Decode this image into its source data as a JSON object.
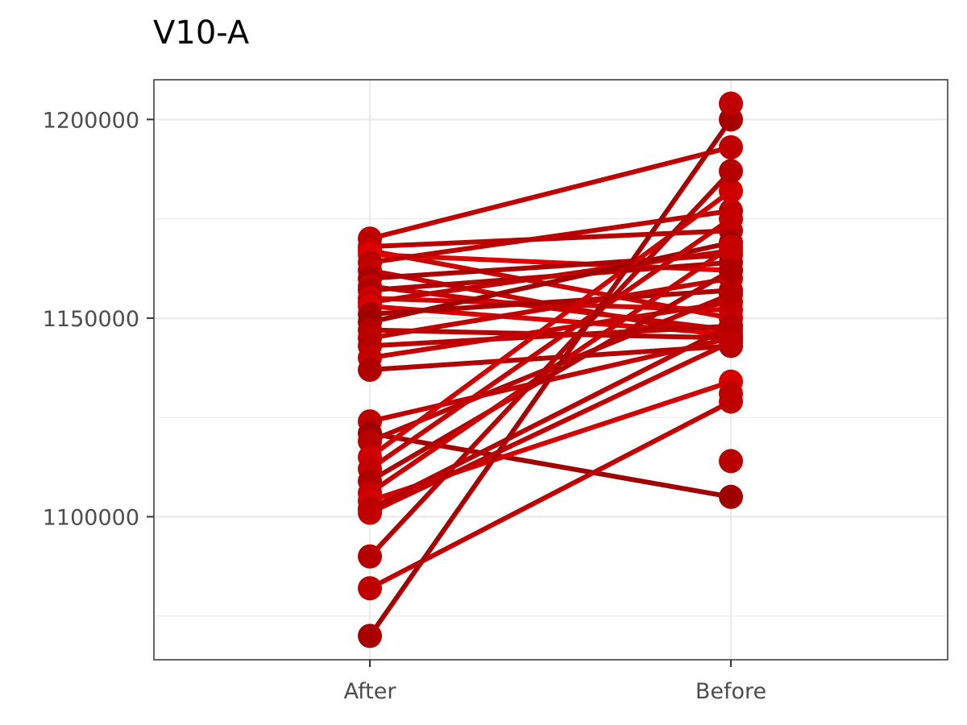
{
  "chart_data": {
    "type": "line",
    "title": "V10-A",
    "xlabel": "",
    "ylabel": "",
    "categories": [
      "After",
      "Before"
    ],
    "y_ticks": [
      "1100000",
      "1150000",
      "1200000"
    ],
    "ylim": [
      1064000,
      1210000
    ],
    "grid": true,
    "legend": "none",
    "pairs": [
      {
        "after": 1170000,
        "before": 1193000,
        "color": "#c00000"
      },
      {
        "after": 1168000,
        "before": 1172000,
        "color": "#b80000"
      },
      {
        "after": 1167000,
        "before": 1150000,
        "color": "#cc0000"
      },
      {
        "after": 1166000,
        "before": 1162000,
        "color": "#e00000"
      },
      {
        "after": 1164000,
        "before": 1177000,
        "color": "#bb0000"
      },
      {
        "after": 1162000,
        "before": 1145000,
        "color": "#c40000"
      },
      {
        "after": 1160000,
        "before": 1166000,
        "color": "#aa0000"
      },
      {
        "after": 1158000,
        "before": 1147000,
        "color": "#c80000"
      },
      {
        "after": 1157000,
        "before": 1164000,
        "color": "#b00000"
      },
      {
        "after": 1155000,
        "before": 1152000,
        "color": "#d00000"
      },
      {
        "after": 1154000,
        "before": 1167000,
        "color": "#c00000"
      },
      {
        "after": 1153000,
        "before": 1146000,
        "color": "#d80000"
      },
      {
        "after": 1151000,
        "before": 1157000,
        "color": "#a80000"
      },
      {
        "after": 1149000,
        "before": 1169000,
        "color": "#a00000"
      },
      {
        "after": 1147000,
        "before": 1145000,
        "color": "#b40000"
      },
      {
        "after": 1145000,
        "before": 1160000,
        "color": "#c00000"
      },
      {
        "after": 1143000,
        "before": 1148000,
        "color": "#b80000"
      },
      {
        "after": 1140000,
        "before": 1154000,
        "color": "#c40000"
      },
      {
        "after": 1137000,
        "before": 1143000,
        "color": "#b00000"
      },
      {
        "after": 1124000,
        "before": 1145000,
        "color": "#c00000"
      },
      {
        "after": 1121000,
        "before": 1105000,
        "color": "#a00000"
      },
      {
        "after": 1119000,
        "before": 1156000,
        "color": "#b80000"
      },
      {
        "after": 1115000,
        "before": 1182000,
        "color": "#d00000"
      },
      {
        "after": 1112000,
        "before": 1175000,
        "color": "#c40000"
      },
      {
        "after": 1109000,
        "before": 1162000,
        "color": "#b00000"
      },
      {
        "after": 1106000,
        "before": 1168000,
        "color": "#c80000"
      },
      {
        "after": 1104000,
        "before": 1134000,
        "color": "#d40000"
      },
      {
        "after": 1102000,
        "before": 1148000,
        "color": "#b80000"
      },
      {
        "after": 1101000,
        "before": 1144000,
        "color": "#c00000"
      },
      {
        "after": 1090000,
        "before": 1187000,
        "color": "#b40000"
      },
      {
        "after": 1082000,
        "before": 1129000,
        "color": "#c00000"
      },
      {
        "after": 1070000,
        "before": 1200000,
        "color": "#a80000"
      }
    ],
    "extra_points": [
      {
        "category": "Before",
        "value": 1204000,
        "color": "#c00000"
      },
      {
        "category": "Before",
        "value": 1114000,
        "color": "#b80000"
      },
      {
        "category": "Before",
        "value": 1131000,
        "color": "#c00000"
      }
    ]
  }
}
